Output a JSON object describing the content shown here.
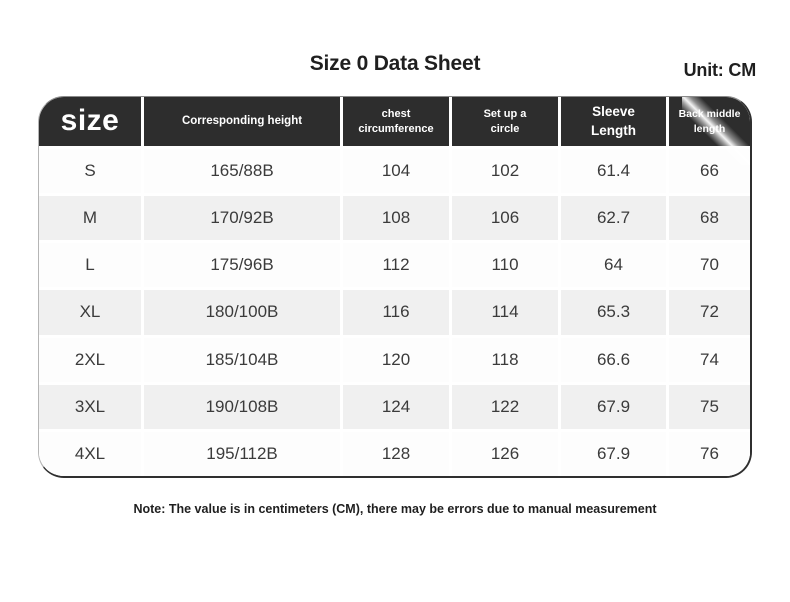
{
  "page": {
    "title": "Size 0 Data Sheet",
    "unit_label": "Unit: CM",
    "note": "Note: The value is in centimeters (CM), there may be errors due to manual measurement"
  },
  "colors": {
    "header_bg": "#2d2d2d",
    "header_text": "#ffffff",
    "row_alt_bg": "#f0f0f0",
    "body_text": "#3b3b3b"
  },
  "table": {
    "headers": [
      "size",
      "Corresponding height",
      "chest\ncircumference",
      "Set up a\ncircle",
      "Sleeve\nLength",
      "Back middle length"
    ],
    "rows": [
      [
        "S",
        "165/88B",
        "104",
        "102",
        "61.4",
        "66"
      ],
      [
        "M",
        "170/92B",
        "108",
        "106",
        "62.7",
        "68"
      ],
      [
        "L",
        "175/96B",
        "112",
        "110",
        "64",
        "70"
      ],
      [
        "XL",
        "180/100B",
        "116",
        "114",
        "65.3",
        "72"
      ],
      [
        "2XL",
        "185/104B",
        "120",
        "118",
        "66.6",
        "74"
      ],
      [
        "3XL",
        "190/108B",
        "124",
        "122",
        "67.9",
        "75"
      ],
      [
        "4XL",
        "195/112B",
        "128",
        "126",
        "67.9",
        "76"
      ]
    ]
  },
  "chart_data": {
    "type": "table",
    "title": "Size 0 Data Sheet",
    "unit": "CM",
    "columns": [
      "size",
      "Corresponding height",
      "chest circumference",
      "Set up a circle",
      "Sleeve Length",
      "Back middle length"
    ],
    "rows": [
      [
        "S",
        "165/88B",
        104,
        102,
        61.4,
        66
      ],
      [
        "M",
        "170/92B",
        108,
        106,
        62.7,
        68
      ],
      [
        "L",
        "175/96B",
        112,
        110,
        64,
        70
      ],
      [
        "XL",
        "180/100B",
        116,
        114,
        65.3,
        72
      ],
      [
        "2XL",
        "185/104B",
        120,
        118,
        66.6,
        74
      ],
      [
        "3XL",
        "190/108B",
        124,
        122,
        67.9,
        75
      ],
      [
        "4XL",
        "195/112B",
        128,
        126,
        67.9,
        76
      ]
    ],
    "note": "Note: The value is in centimeters (CM), there may be errors due to manual measurement"
  }
}
